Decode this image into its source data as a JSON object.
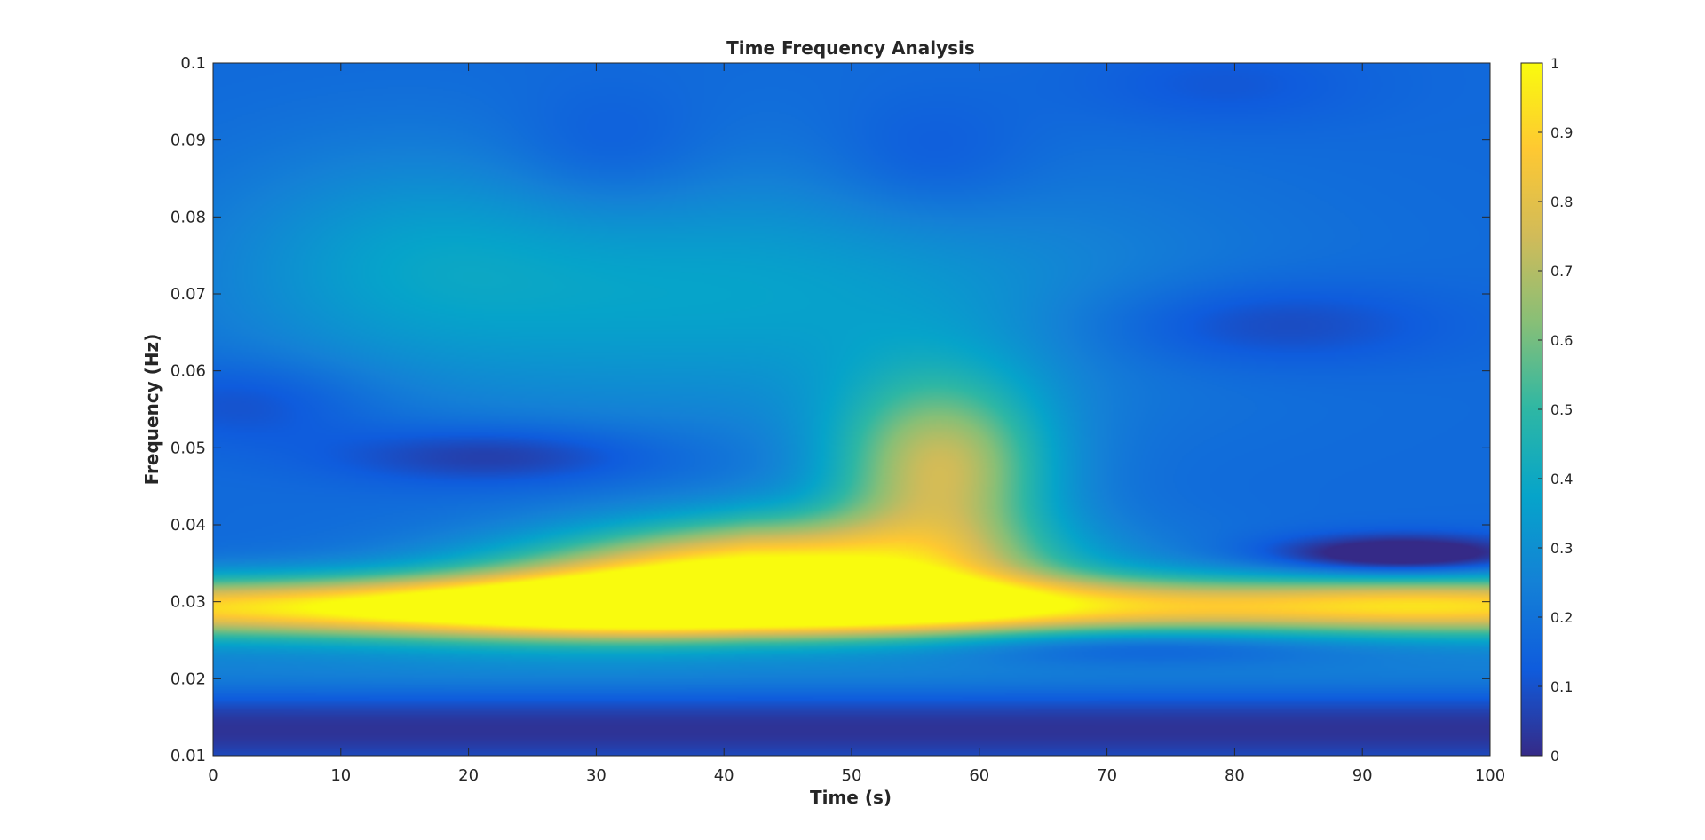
{
  "chart_data": {
    "type": "heatmap",
    "title": "Time Frequency Analysis",
    "xlabel": "Time (s)",
    "ylabel": "Frequency (Hz)",
    "xlim": [
      0,
      100
    ],
    "ylim": [
      0.01,
      0.1
    ],
    "x_ticks": [
      "0",
      "10",
      "20",
      "30",
      "40",
      "50",
      "60",
      "70",
      "80",
      "90",
      "100"
    ],
    "y_ticks": [
      "0.01",
      "0.02",
      "0.03",
      "0.04",
      "0.05",
      "0.06",
      "0.07",
      "0.08",
      "0.09",
      "0.1"
    ],
    "colorbar": {
      "colormap": "parula",
      "range": [
        0,
        1
      ],
      "ticks": [
        "0",
        "0.1",
        "0.2",
        "0.3",
        "0.4",
        "0.5",
        "0.6",
        "0.7",
        "0.8",
        "0.9",
        "1"
      ]
    },
    "grid": false,
    "features": [
      {
        "description": "main ridge",
        "time_range": [
          0,
          100
        ],
        "frequency": 0.029,
        "peak_value": 0.85
      },
      {
        "description": "rising ridge peak",
        "time": 42,
        "frequency": 0.034,
        "peak_value": 1.0
      },
      {
        "description": "upper lobe",
        "time": 57,
        "frequency": 0.047,
        "peak_value": 0.7
      },
      {
        "description": "weak diffuse region",
        "time": 40,
        "frequency": 0.07,
        "peak_value": 0.3
      },
      {
        "description": "low band minimum",
        "time_range": [
          0,
          100
        ],
        "frequency": 0.014,
        "peak_value": 0.05
      },
      {
        "description": "minimum",
        "time": 72,
        "frequency": 0.0245,
        "peak_value": 0.02
      },
      {
        "description": "minimum",
        "time": 93,
        "frequency": 0.036,
        "peak_value": 0.02
      },
      {
        "description": "minimum",
        "time": 22,
        "frequency": 0.049,
        "peak_value": 0.03
      }
    ],
    "colors": {
      "parula_stops": [
        "#352a87",
        "#0f5cdd",
        "#1481d6",
        "#06a4ca",
        "#2eb7a4",
        "#87bf77",
        "#d1bb59",
        "#fec832",
        "#f9fb0e"
      ]
    }
  }
}
